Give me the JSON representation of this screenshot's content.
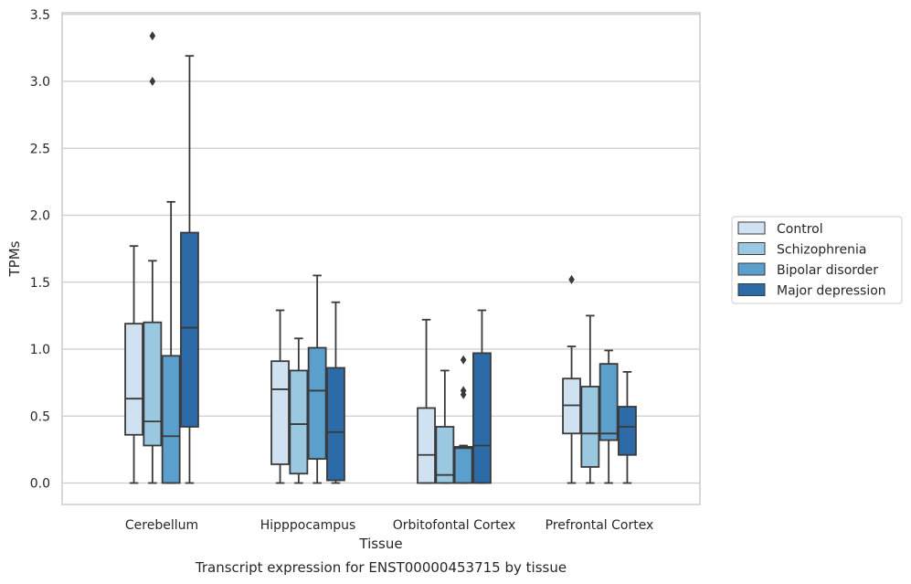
{
  "chart_data": {
    "type": "box",
    "xlabel": "Tissue",
    "ylabel": "TPMs",
    "caption": "Transcript expression for ENST00000453715 by tissue",
    "ylim": [
      -0.16,
      3.52
    ],
    "yticks": [
      "0.0",
      "0.5",
      "1.0",
      "1.5",
      "2.0",
      "2.5",
      "3.0",
      "3.5"
    ],
    "grid": "horizontal",
    "legend_position": "right",
    "categories": [
      "Cerebellum",
      "Hipppocampus",
      "Orbitofontal Cortex",
      "Prefrontal Cortex"
    ],
    "series": [
      {
        "name": "Control",
        "color": "#d0e1f2",
        "boxes": [
          {
            "whislo": 0.0,
            "q1": 0.36,
            "median": 0.63,
            "q3": 1.19,
            "whishi": 1.77,
            "fliers": []
          },
          {
            "whislo": 0.0,
            "q1": 0.14,
            "median": 0.7,
            "q3": 0.91,
            "whishi": 1.29,
            "fliers": []
          },
          {
            "whislo": 0.0,
            "q1": 0.0,
            "median": 0.21,
            "q3": 0.56,
            "whishi": 1.22,
            "fliers": []
          },
          {
            "whislo": 0.0,
            "q1": 0.37,
            "median": 0.58,
            "q3": 0.78,
            "whishi": 1.02,
            "fliers": [
              1.52
            ]
          }
        ]
      },
      {
        "name": "Schizophrenia",
        "color": "#9ac8e0",
        "boxes": [
          {
            "whislo": 0.0,
            "q1": 0.28,
            "median": 0.46,
            "q3": 1.2,
            "whishi": 1.66,
            "fliers": [
              3.0,
              3.34
            ]
          },
          {
            "whislo": 0.0,
            "q1": 0.07,
            "median": 0.44,
            "q3": 0.84,
            "whishi": 1.08,
            "fliers": []
          },
          {
            "whislo": 0.0,
            "q1": 0.0,
            "median": 0.06,
            "q3": 0.42,
            "whishi": 0.84,
            "fliers": []
          },
          {
            "whislo": 0.0,
            "q1": 0.12,
            "median": 0.37,
            "q3": 0.72,
            "whishi": 1.25,
            "fliers": []
          }
        ]
      },
      {
        "name": "Bipolar disorder",
        "color": "#5b9fcc",
        "boxes": [
          {
            "whislo": 0.0,
            "q1": 0.0,
            "median": 0.35,
            "q3": 0.95,
            "whishi": 2.1,
            "fliers": []
          },
          {
            "whislo": 0.0,
            "q1": 0.18,
            "median": 0.69,
            "q3": 1.01,
            "whishi": 1.55,
            "fliers": []
          },
          {
            "whislo": 0.0,
            "q1": 0.0,
            "median": 0.26,
            "q3": 0.27,
            "whishi": 0.28,
            "fliers": [
              0.66,
              0.69,
              0.92
            ]
          },
          {
            "whislo": 0.0,
            "q1": 0.32,
            "median": 0.37,
            "q3": 0.89,
            "whishi": 0.99,
            "fliers": []
          }
        ]
      },
      {
        "name": "Major depression",
        "color": "#2c6aa8",
        "boxes": [
          {
            "whislo": 0.0,
            "q1": 0.42,
            "median": 1.16,
            "q3": 1.87,
            "whishi": 3.19,
            "fliers": []
          },
          {
            "whislo": 0.0,
            "q1": 0.02,
            "median": 0.38,
            "q3": 0.86,
            "whishi": 1.35,
            "fliers": []
          },
          {
            "whislo": 0.0,
            "q1": 0.0,
            "median": 0.28,
            "q3": 0.97,
            "whishi": 1.29,
            "fliers": []
          },
          {
            "whislo": 0.0,
            "q1": 0.21,
            "median": 0.42,
            "q3": 0.57,
            "whishi": 0.83,
            "fliers": []
          }
        ]
      }
    ]
  }
}
